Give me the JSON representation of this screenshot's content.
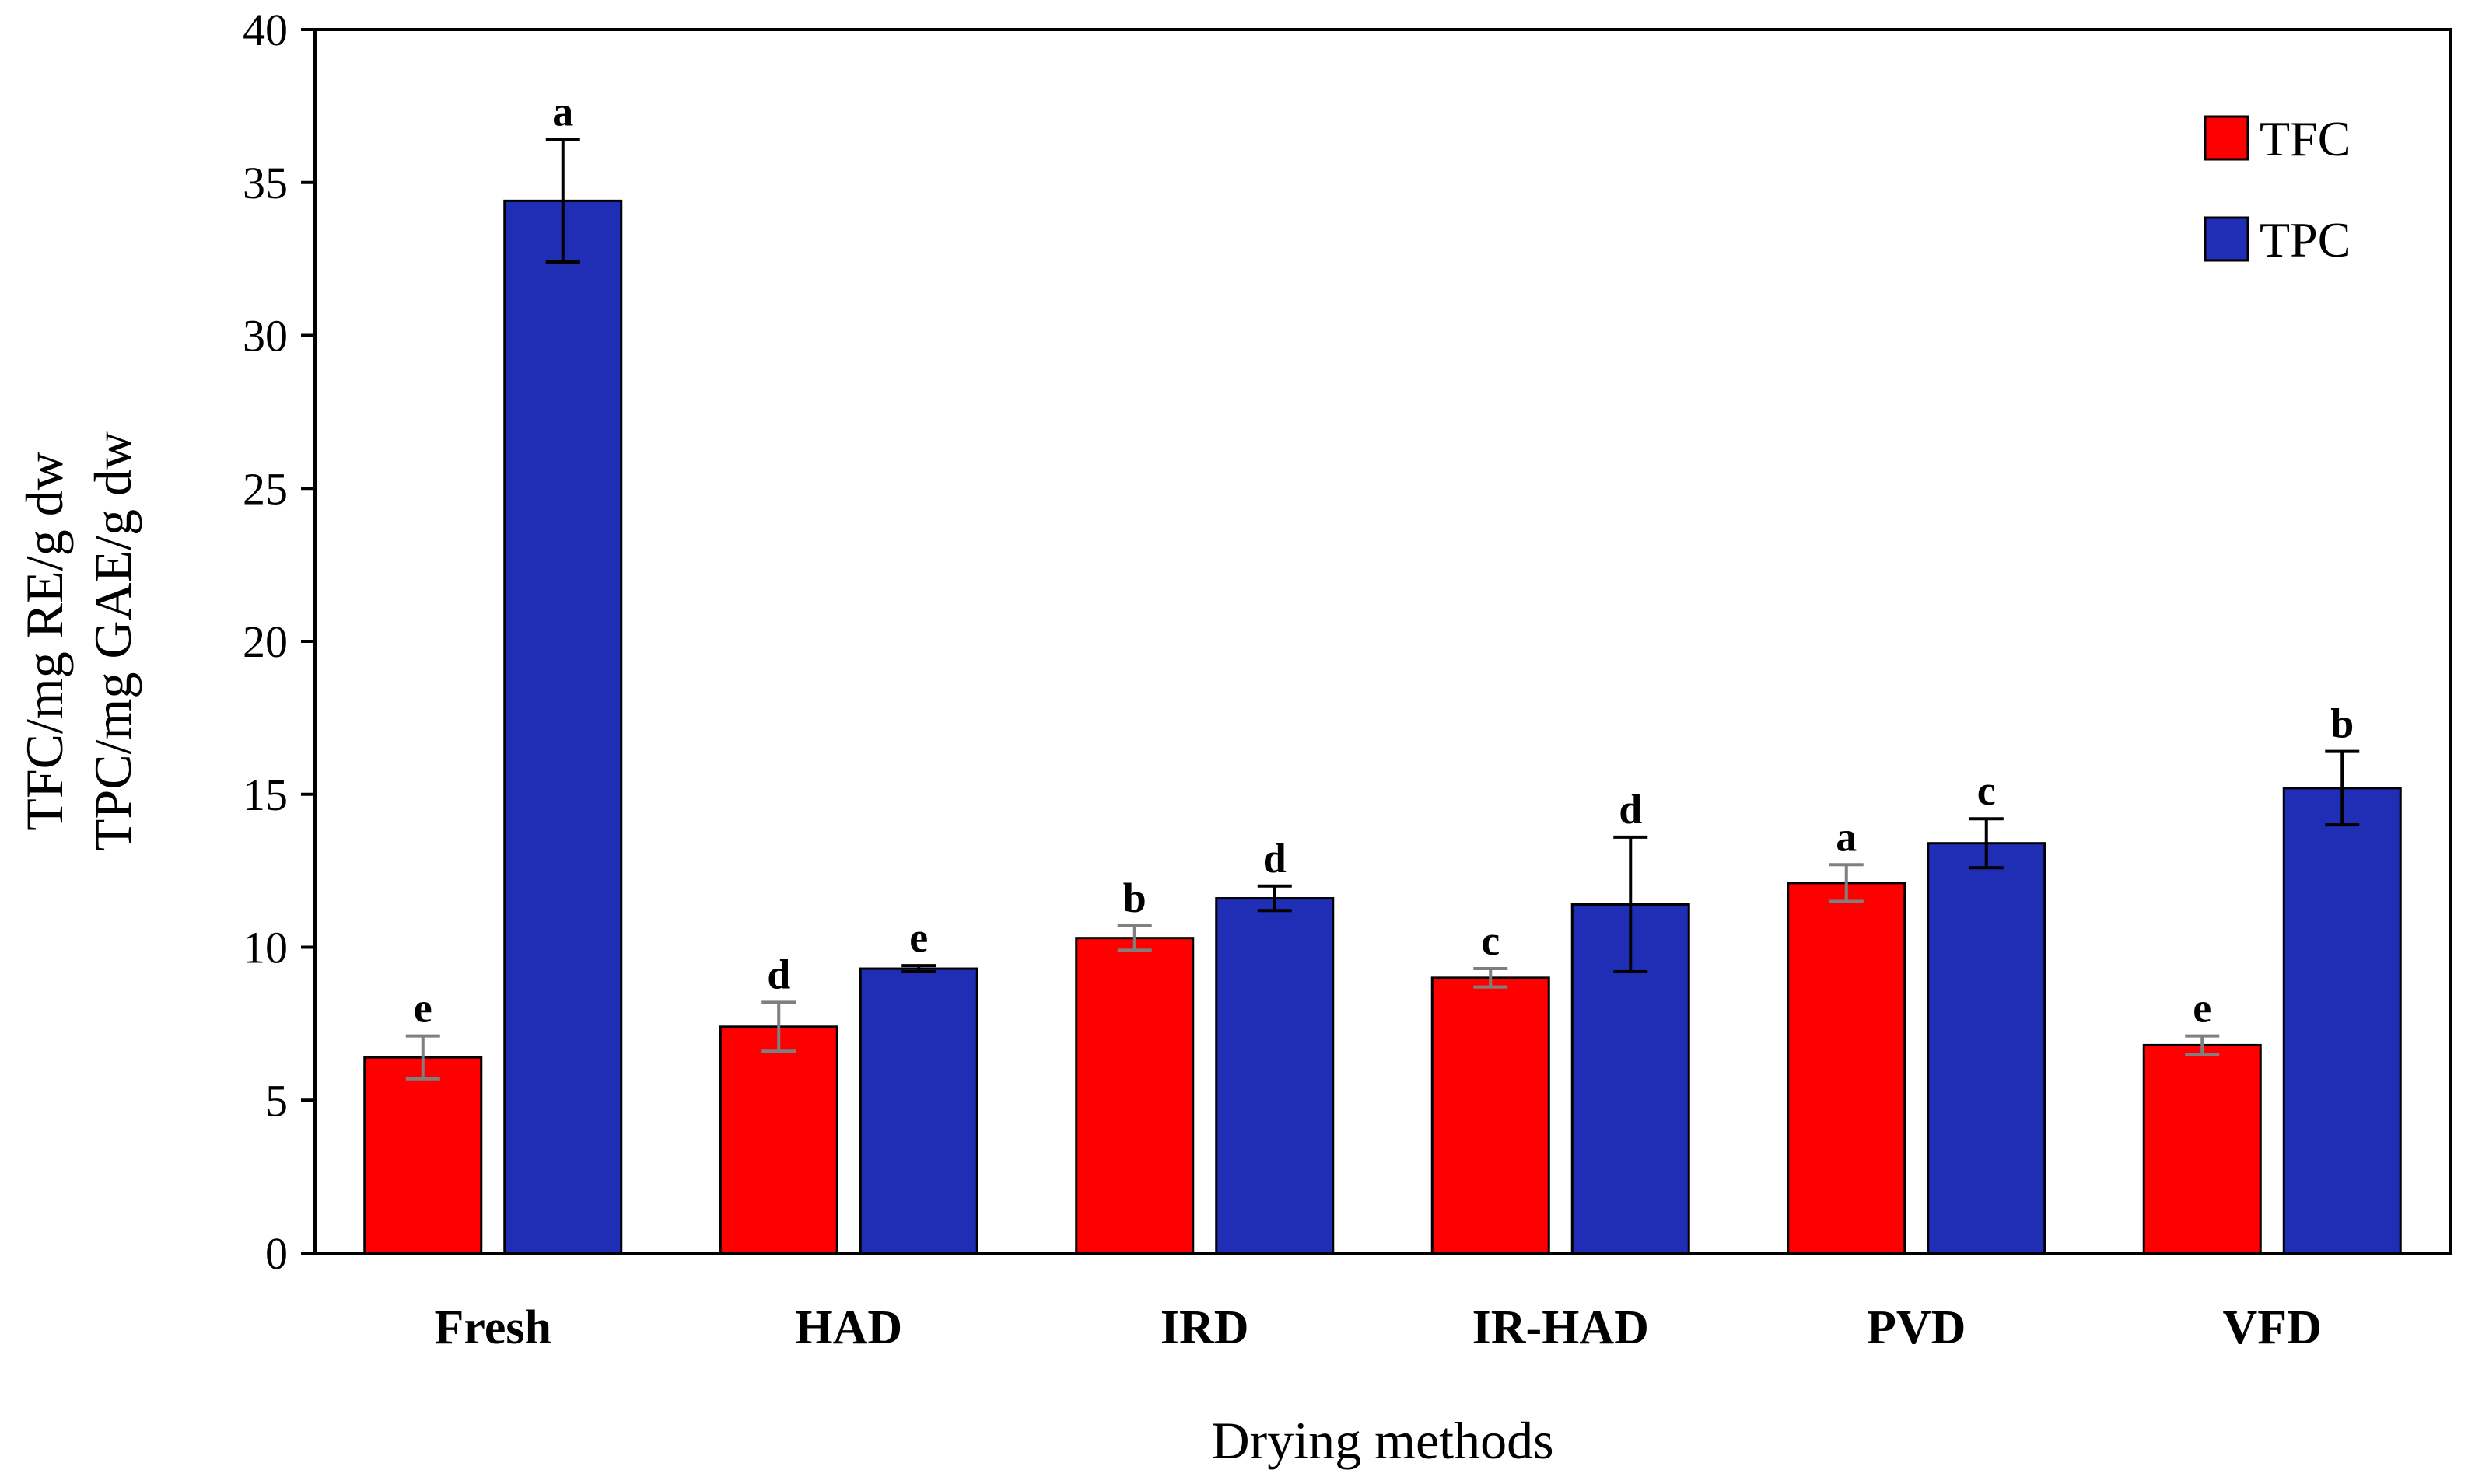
{
  "chart_data": {
    "type": "bar",
    "title": "",
    "xlabel": "Drying methods",
    "ylabel": [
      "TFC/mg RE/g dw",
      "TPC/mg GAE/g dw"
    ],
    "ylim": [
      0,
      40
    ],
    "yticks": [
      0,
      5,
      10,
      15,
      20,
      25,
      30,
      35,
      40
    ],
    "categories": [
      "Fresh",
      "HAD",
      "IRD",
      "IR-HAD",
      "PVD",
      "VFD"
    ],
    "legend_position": "top-right",
    "series": [
      {
        "name": "TFC",
        "color": "#ff0000",
        "values": [
          6.4,
          7.4,
          10.3,
          9.0,
          12.1,
          6.8
        ],
        "errors": [
          0.7,
          0.8,
          0.4,
          0.3,
          0.6,
          0.3
        ],
        "letters": [
          "e",
          "d",
          "b",
          "c",
          "a",
          "e"
        ]
      },
      {
        "name": "TPC",
        "color": "#1f2eb4",
        "values": [
          34.4,
          9.3,
          11.6,
          11.4,
          13.4,
          15.2
        ],
        "errors": [
          2.0,
          0.1,
          0.4,
          2.2,
          0.8,
          1.2
        ],
        "letters": [
          "a",
          "e",
          "d",
          "d",
          "c",
          "b"
        ]
      }
    ]
  }
}
